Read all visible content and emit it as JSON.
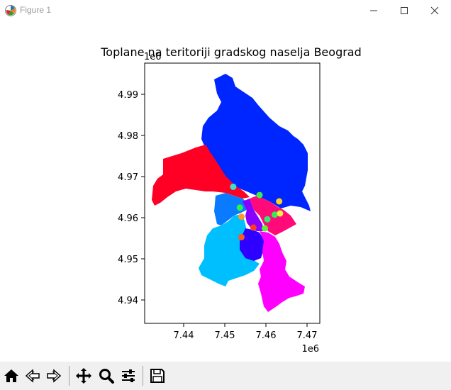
{
  "window": {
    "title": "Figure 1",
    "controls": [
      "minimize",
      "maximize",
      "close"
    ]
  },
  "figure": {
    "title": "Toplane na teritoriji gradskog naselja Beograd",
    "y_offset_label": "1e6",
    "x_offset_label": "1e6",
    "x_ticks": [
      "7.44",
      "7.45",
      "7.46",
      "7.47"
    ],
    "y_ticks": [
      "4.94",
      "4.95",
      "4.96",
      "4.97",
      "4.98",
      "4.99"
    ]
  },
  "chart_data": {
    "type": "scatter",
    "title": "Toplane na teritoriji gradskog naselja Beograd",
    "xlabel": "",
    "ylabel": "",
    "x_scale_factor": "1e6",
    "y_scale_factor": "1e6",
    "xlim": [
      7.4305,
      7.4732
    ],
    "ylim": [
      4.9341,
      4.9966
    ],
    "grid": false,
    "region_colors": [
      "#0026ff",
      "#ff0024",
      "#0a7bff",
      "#00bfff",
      "#ff00ff",
      "#ff0a78",
      "#8a00ff",
      "#2d00ff"
    ],
    "points": [
      {
        "x": 7.4521,
        "y": 4.9669,
        "color": "#3ce3c8"
      },
      {
        "x": 7.4585,
        "y": 4.9649,
        "color": "#46e84a"
      },
      {
        "x": 7.4633,
        "y": 4.9634,
        "color": "#ffd21e"
      },
      {
        "x": 7.4537,
        "y": 4.9619,
        "color": "#2ef04e"
      },
      {
        "x": 7.4622,
        "y": 4.9602,
        "color": "#36e85a"
      },
      {
        "x": 7.4635,
        "y": 4.9605,
        "color": "#f2f03a"
      },
      {
        "x": 7.4541,
        "y": 4.9597,
        "color": "#ff9a28"
      },
      {
        "x": 7.4604,
        "y": 4.9591,
        "color": "#34ea6e"
      },
      {
        "x": 7.457,
        "y": 4.9571,
        "color": "#ff3c1e"
      },
      {
        "x": 7.4598,
        "y": 4.9569,
        "color": "#5ef03a"
      },
      {
        "x": 7.4541,
        "y": 4.9548,
        "color": "#ff5a1e"
      }
    ]
  },
  "toolbar": {
    "buttons": [
      "home-icon",
      "back-icon",
      "forward-icon",
      "pan-icon",
      "zoom-icon",
      "configure-icon",
      "save-icon"
    ]
  }
}
